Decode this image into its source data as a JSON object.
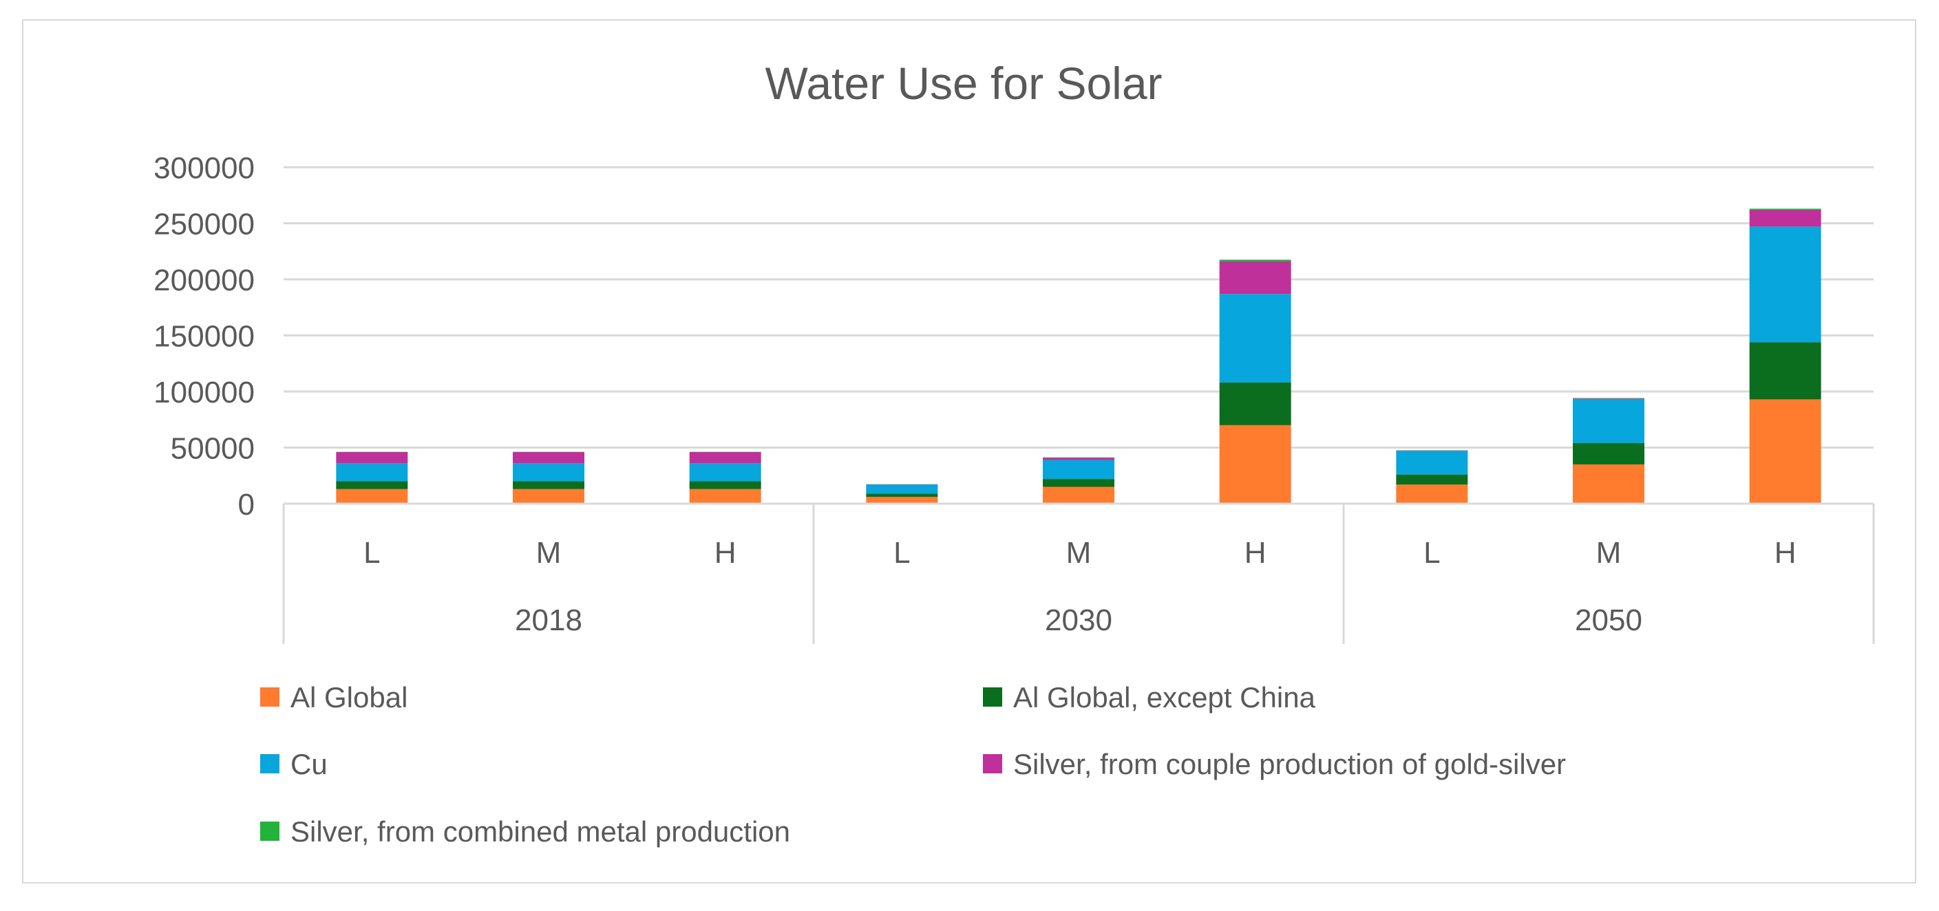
{
  "chart_data": {
    "type": "bar",
    "stacked": true,
    "title": "Water Use for Solar",
    "xlabel": "",
    "ylabel": "",
    "ylim": [
      0,
      300000
    ],
    "yticks": [
      0,
      50000,
      100000,
      150000,
      200000,
      250000,
      300000
    ],
    "ytick_labels": [
      "0",
      "50000",
      "100000",
      "150000",
      "200000",
      "250000",
      "300000"
    ],
    "grid": true,
    "legend_position": "bottom",
    "groups": [
      {
        "label": "2018",
        "categories": [
          "L",
          "M",
          "H"
        ]
      },
      {
        "label": "2030",
        "categories": [
          "L",
          "M",
          "H"
        ]
      },
      {
        "label": "2050",
        "categories": [
          "L",
          "M",
          "H"
        ]
      }
    ],
    "series": [
      {
        "name": "Al Global",
        "color": "#ff7b2e",
        "values": [
          13000,
          13000,
          13000,
          6000,
          15000,
          70000,
          17000,
          35000,
          93000
        ]
      },
      {
        "name": "Al Global, except China",
        "color": "#0a6e1e",
        "values": [
          7000,
          7000,
          7000,
          3000,
          7000,
          38000,
          9000,
          19000,
          51000
        ]
      },
      {
        "name": "Cu",
        "color": "#07a6dd",
        "values": [
          16000,
          16000,
          16000,
          8000,
          17000,
          79000,
          21000,
          39000,
          103000
        ]
      },
      {
        "name": "Silver, from couple production of gold-silver",
        "color": "#c0309a",
        "values": [
          10000,
          10000,
          10000,
          300,
          2000,
          29000,
          300,
          700,
          15000
        ]
      },
      {
        "name": "Silver, from combined metal production",
        "color": "#22b33a",
        "values": [
          200,
          200,
          200,
          100,
          300,
          1500,
          300,
          500,
          1000
        ]
      }
    ]
  }
}
